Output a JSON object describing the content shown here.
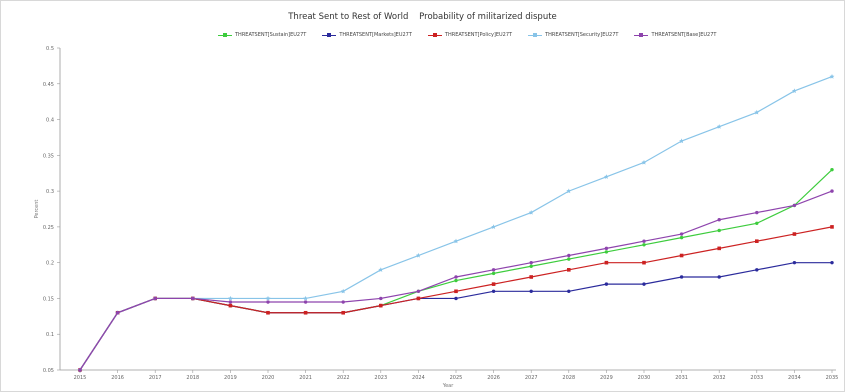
{
  "window": {
    "title": "Threat Sent to Rest of World    Probability of militarized dispute"
  },
  "chart_data": {
    "type": "line",
    "title": "Threat Sent to Rest of World    Probability of militarized dispute",
    "xlabel": "Year",
    "ylabel": "Percent",
    "x": [
      "2015",
      "2016",
      "2017",
      "2018",
      "2019",
      "2020",
      "2021",
      "2022",
      "2023",
      "2024",
      "2025",
      "2026",
      "2027",
      "2028",
      "2029",
      "2030",
      "2031",
      "2032",
      "2033",
      "2034",
      "2035"
    ],
    "yticks": [
      "0.05",
      "0.1",
      "0.15",
      "0.2",
      "0.25",
      "0.3",
      "0.35",
      "0.4",
      "0.45",
      "0.5"
    ],
    "ylim": [
      0.05,
      0.5
    ],
    "grid": false,
    "legend_position": "top",
    "series": [
      {
        "name": "THREATSENT[Sustain]EU27T",
        "color": "#3dcc3d",
        "marker": "circle",
        "values": [
          0.05,
          0.13,
          0.15,
          0.15,
          0.14,
          0.13,
          0.13,
          0.13,
          0.14,
          0.16,
          0.175,
          0.185,
          0.195,
          0.205,
          0.215,
          0.225,
          0.235,
          0.245,
          0.255,
          0.28,
          0.33
        ]
      },
      {
        "name": "THREATSENT[Markets]EU27T",
        "color": "#2b2b9c",
        "marker": "circle",
        "values": [
          0.05,
          0.13,
          0.15,
          0.15,
          0.14,
          0.13,
          0.13,
          0.13,
          0.14,
          0.15,
          0.15,
          0.16,
          0.16,
          0.16,
          0.17,
          0.17,
          0.18,
          0.18,
          0.19,
          0.2,
          0.2
        ]
      },
      {
        "name": "THREATSENT[Policy]EU27T",
        "color": "#cc2222",
        "marker": "square",
        "values": [
          0.05,
          0.13,
          0.15,
          0.15,
          0.14,
          0.13,
          0.13,
          0.13,
          0.14,
          0.15,
          0.16,
          0.17,
          0.18,
          0.19,
          0.2,
          0.2,
          0.21,
          0.22,
          0.23,
          0.24,
          0.25
        ]
      },
      {
        "name": "THREATSENT[Security]EU27T",
        "color": "#88c4e8",
        "marker": "star",
        "values": [
          0.05,
          0.13,
          0.15,
          0.15,
          0.15,
          0.15,
          0.15,
          0.16,
          0.19,
          0.21,
          0.23,
          0.25,
          0.27,
          0.3,
          0.32,
          0.34,
          0.37,
          0.39,
          0.41,
          0.44,
          0.46
        ]
      },
      {
        "name": "THREATSENT[Base]EU27T",
        "color": "#8e44ad",
        "marker": "circle",
        "values": [
          0.05,
          0.13,
          0.15,
          0.15,
          0.145,
          0.145,
          0.145,
          0.145,
          0.15,
          0.16,
          0.18,
          0.19,
          0.2,
          0.21,
          0.22,
          0.23,
          0.24,
          0.26,
          0.27,
          0.28,
          0.3
        ]
      }
    ]
  }
}
